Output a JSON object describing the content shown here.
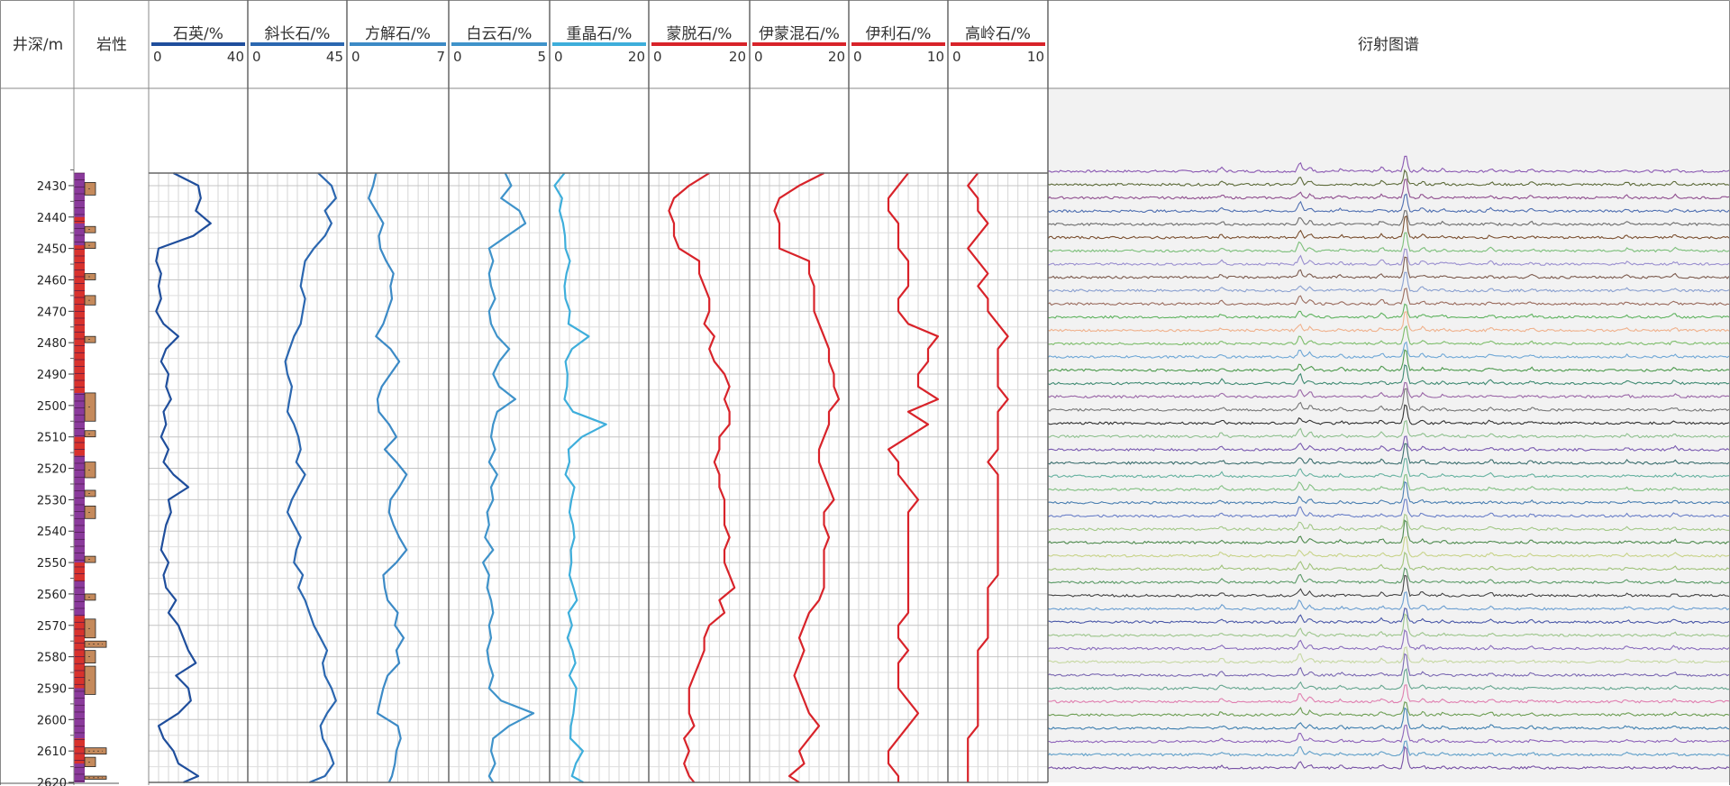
{
  "depth_header": "井深/m",
  "lithology_header": "岩性",
  "diffraction_header": "衍射图谱",
  "chart_data": {
    "type": "line",
    "depth_unit": "m",
    "depth_range": [
      2426,
      2620
    ],
    "depth_ticks": [
      2430,
      2440,
      2450,
      2460,
      2470,
      2480,
      2490,
      2500,
      2510,
      2520,
      2530,
      2540,
      2550,
      2560,
      2570,
      2580,
      2590,
      2600,
      2610,
      2620
    ],
    "depths": [
      2426,
      2430,
      2434,
      2438,
      2442,
      2446,
      2450,
      2454,
      2458,
      2462,
      2466,
      2470,
      2474,
      2478,
      2482,
      2486,
      2490,
      2494,
      2498,
      2502,
      2506,
      2510,
      2514,
      2518,
      2522,
      2526,
      2530,
      2534,
      2538,
      2542,
      2546,
      2550,
      2554,
      2558,
      2562,
      2566,
      2570,
      2574,
      2578,
      2582,
      2586,
      2590,
      2594,
      2598,
      2602,
      2606,
      2610,
      2614,
      2618,
      2620
    ],
    "series": [
      {
        "name": "石英/%",
        "color": "#1f4e9c",
        "xlim": [
          0,
          40
        ],
        "values": [
          10,
          20,
          21,
          19,
          25,
          18,
          4,
          3,
          5,
          4,
          5,
          3,
          6,
          12,
          7,
          5,
          8,
          7,
          9,
          6,
          7,
          5,
          8,
          6,
          10,
          16,
          8,
          9,
          7,
          6,
          5,
          8,
          6,
          7,
          11,
          8,
          12,
          14,
          16,
          19,
          11,
          16,
          17,
          12,
          4,
          6,
          10,
          12,
          20,
          14
        ]
      },
      {
        "name": "斜长石/%",
        "color": "#2b67b0",
        "xlim": [
          0,
          45
        ],
        "values": [
          32,
          38,
          40,
          35,
          38,
          35,
          30,
          26,
          25,
          24,
          26,
          25,
          24,
          21,
          19,
          17,
          18,
          20,
          19,
          18,
          21,
          23,
          24,
          22,
          26,
          23,
          20,
          18,
          21,
          24,
          22,
          21,
          25,
          23,
          26,
          28,
          30,
          33,
          36,
          34,
          35,
          38,
          40,
          36,
          33,
          34,
          37,
          39,
          35,
          28
        ]
      },
      {
        "name": "方解石/%",
        "color": "#3c8ac6",
        "xlim": [
          0,
          7
        ],
        "values": [
          2,
          1.8,
          1.5,
          2.0,
          2.5,
          2.2,
          2.3,
          2.7,
          3.2,
          3.0,
          3.1,
          2.8,
          2.5,
          2.0,
          3.0,
          3.6,
          3.0,
          2.4,
          2.1,
          2.2,
          2.9,
          3.4,
          2.6,
          3.4,
          4.1,
          3.6,
          3.0,
          2.9,
          3.2,
          3.6,
          4.1,
          3.4,
          2.5,
          2.6,
          2.8,
          3.5,
          3.3,
          3.9,
          3.4,
          3.6,
          2.8,
          2.5,
          2.3,
          2.1,
          3.5,
          3.7,
          3.4,
          3.3,
          3.1,
          2.9
        ]
      },
      {
        "name": "白云石/%",
        "color": "#3f93ca",
        "xlim": [
          0,
          5
        ],
        "values": [
          2.8,
          3.1,
          2.6,
          3.5,
          3.8,
          2.9,
          2.0,
          2.2,
          2.0,
          2.1,
          2.3,
          2.0,
          2.1,
          2.4,
          3.0,
          2.5,
          2.2,
          2.5,
          3.3,
          2.4,
          2.2,
          2.1,
          2.3,
          2.0,
          2.4,
          2.1,
          2.2,
          1.9,
          2.0,
          1.8,
          2.2,
          1.7,
          2.0,
          1.9,
          2.1,
          2.2,
          2.0,
          2.1,
          1.9,
          2.0,
          2.2,
          2.0,
          2.6,
          4.2,
          3.0,
          2.2,
          2.1,
          2.3,
          2.0,
          2.2
        ]
      },
      {
        "name": "重晶石/%",
        "color": "#3eaedb",
        "xlim": [
          0,
          20
        ],
        "values": [
          3,
          1,
          2.5,
          2.0,
          2.7,
          3.1,
          3.2,
          4.1,
          3.4,
          3.0,
          3.2,
          4.1,
          3.8,
          7.9,
          4.5,
          3.2,
          3.6,
          3.5,
          3.0,
          4.7,
          11.4,
          6.5,
          3.8,
          4.0,
          3.2,
          5.0,
          4.4,
          4.0,
          4.7,
          5.0,
          4.3,
          4.4,
          4.0,
          4.8,
          5.5,
          3.8,
          4.5,
          3.6,
          4.6,
          5.2,
          4.0,
          5.4,
          5.1,
          4.8,
          4.3,
          4.2,
          6.7,
          5.3,
          4.5,
          6.8
        ]
      },
      {
        "name": "蒙脱石/%",
        "color": "#d8232a",
        "xlim": [
          0,
          20
        ],
        "values": [
          12,
          8,
          5,
          4,
          5,
          5,
          6,
          10,
          10,
          11,
          12,
          12,
          11,
          13,
          12,
          13,
          15,
          16,
          15,
          16,
          16,
          14,
          14,
          13,
          14,
          14,
          15,
          15,
          15,
          16,
          15,
          15,
          16,
          17,
          14,
          15,
          12,
          11,
          11,
          10,
          9,
          8,
          8,
          8,
          9,
          7,
          8,
          7,
          8,
          9
        ]
      },
      {
        "name": "伊蒙混石/%",
        "color": "#d8232a",
        "xlim": [
          0,
          20
        ],
        "values": [
          15,
          10,
          6,
          5,
          6,
          6,
          6,
          12,
          12,
          13,
          13,
          13,
          14,
          15,
          16,
          16,
          17,
          17,
          18,
          16,
          16,
          15,
          14,
          14,
          15,
          16,
          17,
          15,
          15,
          16,
          15,
          15,
          15,
          15,
          14,
          12,
          11,
          10,
          11,
          10,
          9,
          10,
          11,
          12,
          14,
          12,
          10,
          11,
          8,
          10
        ]
      },
      {
        "name": "伊利石/%",
        "color": "#d8232a",
        "xlim": [
          0,
          10
        ],
        "values": [
          6,
          5,
          4,
          4,
          5,
          5,
          5,
          6,
          6,
          6,
          5,
          5,
          6,
          9,
          8,
          8,
          7,
          7,
          9,
          6,
          8,
          6,
          4,
          5,
          5,
          6,
          7,
          6,
          6,
          6,
          6,
          6,
          6,
          6,
          6,
          6,
          5,
          5,
          6,
          5,
          5,
          5,
          6,
          7,
          6,
          5,
          4,
          4,
          5,
          5
        ]
      },
      {
        "name": "高岭石/%",
        "color": "#d8232a",
        "xlim": [
          0,
          10
        ],
        "values": [
          3,
          2,
          3,
          3,
          4,
          3,
          2,
          3,
          4,
          3,
          4,
          4,
          5,
          6,
          5,
          5,
          5,
          5,
          6,
          5,
          5,
          5,
          5,
          4,
          5,
          5,
          5,
          5,
          5,
          5,
          5,
          5,
          5,
          4,
          4,
          4,
          4,
          4,
          3,
          3,
          3,
          3,
          3,
          3,
          3,
          2,
          2,
          2,
          2,
          2
        ]
      }
    ],
    "diffraction": {
      "type": "line",
      "curve_count": 46,
      "title": "衍射图谱",
      "peaks": [
        {
          "position": 0.255,
          "height": 0.5
        },
        {
          "position": 0.37,
          "height": 1.2
        },
        {
          "position": 0.385,
          "height": 0.6
        },
        {
          "position": 0.43,
          "height": 0.3
        },
        {
          "position": 0.49,
          "height": 0.5
        },
        {
          "position": 0.525,
          "height": 3.2
        },
        {
          "position": 0.55,
          "height": 0.5
        },
        {
          "position": 0.58,
          "height": 0.3
        },
        {
          "position": 0.65,
          "height": 0.4
        },
        {
          "position": 0.71,
          "height": 0.3
        },
        {
          "position": 0.85,
          "height": 0.3
        },
        {
          "position": 0.92,
          "height": 0.4
        }
      ],
      "colors": [
        "#8a58b2",
        "#5d6b3a",
        "#8f4e8f",
        "#4f6fb1",
        "#6d6d6d",
        "#7a4f2f",
        "#7cbf7a",
        "#9a8fcf",
        "#7c5b4e",
        "#8aa0d0",
        "#9a6b5d",
        "#5fb35f",
        "#f0b18c",
        "#7dbd6b",
        "#6ea7d6",
        "#4d9a4d",
        "#3f8a72",
        "#9a66a7",
        "#777777",
        "#323232",
        "#8ec08e",
        "#7a5ab0",
        "#3a6d6d",
        "#66b2a0",
        "#83c183",
        "#4a7fb1",
        "#6a7fc8",
        "#a3c887",
        "#4e8a4e",
        "#c7d388",
        "#a0c37a",
        "#5b9a67",
        "#444444",
        "#6a9ed1",
        "#4a58a8",
        "#9cc58b",
        "#8a6dbd",
        "#c6d8a2",
        "#7b68b2",
        "#65a68f",
        "#e07fb0",
        "#6d9e54",
        "#3f7fb0",
        "#8e64ba",
        "#5f9fc9",
        "#7750a5"
      ]
    }
  }
}
